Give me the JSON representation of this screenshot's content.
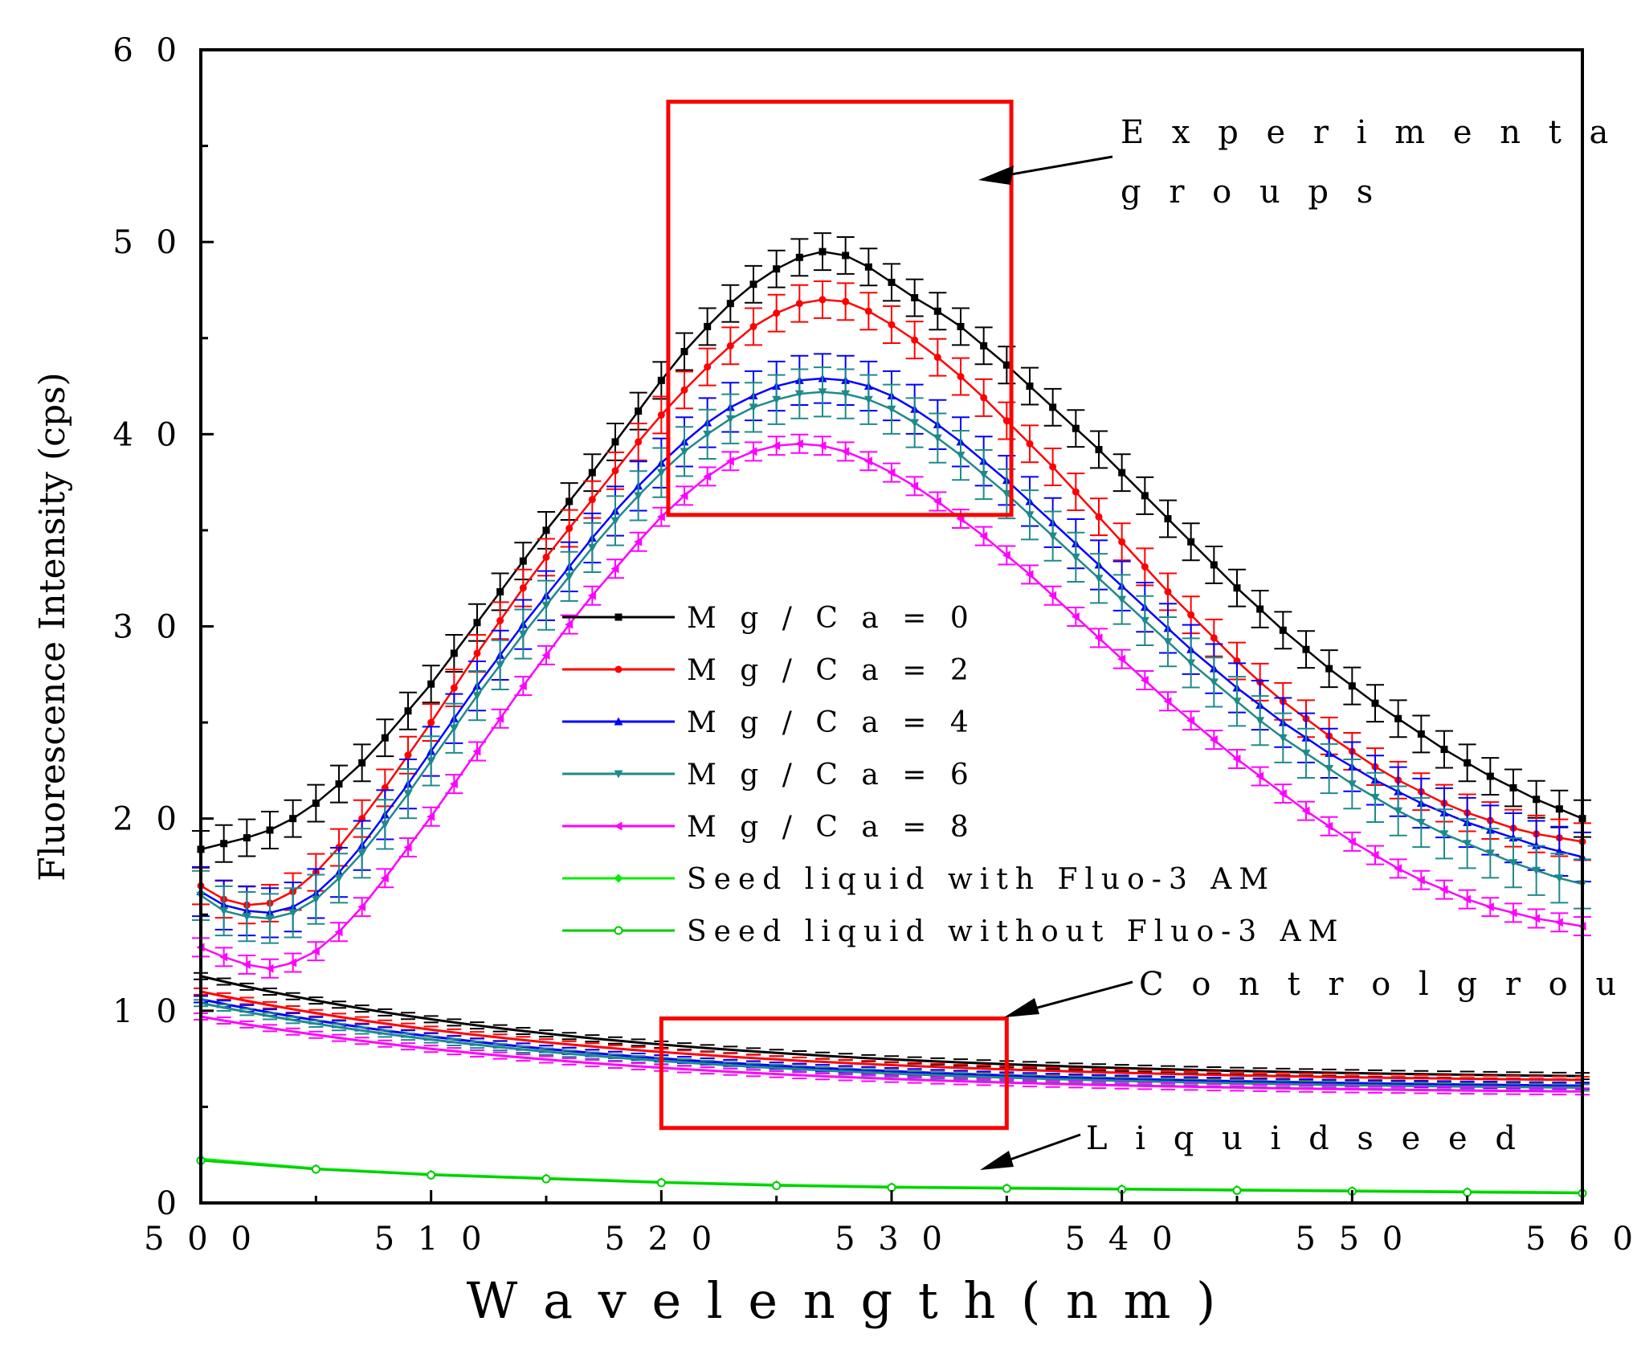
{
  "chart_data": {
    "type": "line",
    "title": "",
    "xlabel": "W a v e l e n g t h  ( n m )",
    "ylabel": "Fluorescence Intensity (cps)",
    "xlim": [
      500,
      560
    ],
    "ylim": [
      0,
      60
    ],
    "xticks": [
      "5 0 0",
      "5 1 0",
      "5 2 0",
      "5 3 0",
      "5 4 0",
      "5 5 0",
      "5 6 0"
    ],
    "yticks": [
      "0",
      "1 0",
      "2 0",
      "3 0",
      "4 0",
      "5 0",
      "6 0"
    ],
    "legend_position": "center",
    "series": [
      {
        "name": "M g / C a = 0",
        "color": "#000000",
        "marker": "square",
        "x": [
          500,
          501,
          502,
          503,
          504,
          505,
          506,
          507,
          508,
          509,
          510,
          511,
          512,
          513,
          514,
          515,
          516,
          517,
          518,
          519,
          520,
          521,
          522,
          523,
          524,
          525,
          526,
          527,
          528,
          529,
          530,
          531,
          532,
          533,
          534,
          535,
          536,
          537,
          538,
          539,
          540,
          541,
          542,
          543,
          544,
          545,
          546,
          547,
          548,
          549,
          550,
          551,
          552,
          553,
          554,
          555,
          556,
          557,
          558,
          559,
          560
        ],
        "values": [
          18.4,
          18.7,
          19.0,
          19.4,
          20.0,
          20.8,
          21.8,
          22.9,
          24.2,
          25.6,
          27.0,
          28.6,
          30.2,
          31.8,
          33.4,
          35.0,
          36.5,
          38.0,
          39.6,
          41.2,
          42.8,
          44.3,
          45.6,
          46.8,
          47.8,
          48.6,
          49.2,
          49.5,
          49.3,
          48.7,
          47.9,
          47.1,
          46.4,
          45.6,
          44.6,
          43.6,
          42.5,
          41.4,
          40.3,
          39.2,
          38.0,
          36.8,
          35.6,
          34.4,
          33.2,
          32.0,
          30.9,
          29.8,
          28.8,
          27.8,
          26.9,
          26.0,
          25.2,
          24.4,
          23.6,
          22.9,
          22.2,
          21.6,
          21.0,
          20.5,
          20.0
        ],
        "errors": 0.6
      },
      {
        "name": "M g / C a = 2",
        "color": "#ff0000",
        "marker": "circle",
        "x": [
          500,
          501,
          502,
          503,
          504,
          505,
          506,
          507,
          508,
          509,
          510,
          511,
          512,
          513,
          514,
          515,
          516,
          517,
          518,
          519,
          520,
          521,
          522,
          523,
          524,
          525,
          526,
          527,
          528,
          529,
          530,
          531,
          532,
          533,
          534,
          535,
          536,
          537,
          538,
          539,
          540,
          541,
          542,
          543,
          544,
          545,
          546,
          547,
          548,
          549,
          550,
          551,
          552,
          553,
          554,
          555,
          556,
          557,
          558,
          559,
          560
        ],
        "values": [
          16.5,
          15.8,
          15.5,
          15.6,
          16.2,
          17.2,
          18.5,
          20.0,
          21.6,
          23.3,
          25.0,
          26.8,
          28.6,
          30.3,
          32.0,
          33.6,
          35.1,
          36.6,
          38.1,
          39.6,
          41.0,
          42.3,
          43.5,
          44.6,
          45.6,
          46.3,
          46.8,
          47.0,
          46.9,
          46.4,
          45.7,
          44.9,
          44.0,
          43.0,
          41.9,
          40.7,
          39.5,
          38.3,
          37.0,
          35.7,
          34.4,
          33.1,
          31.8,
          30.6,
          29.4,
          28.2,
          27.1,
          26.1,
          25.2,
          24.3,
          23.5,
          22.7,
          22.0,
          21.4,
          20.8,
          20.3,
          19.9,
          19.5,
          19.2,
          19.0,
          18.8
        ],
        "errors": 0.6
      },
      {
        "name": "M g / C a = 4",
        "color": "#0000ff",
        "marker": "triangle-up",
        "x": [
          500,
          501,
          502,
          503,
          504,
          505,
          506,
          507,
          508,
          509,
          510,
          511,
          512,
          513,
          514,
          515,
          516,
          517,
          518,
          519,
          520,
          521,
          522,
          523,
          524,
          525,
          526,
          527,
          528,
          529,
          530,
          531,
          532,
          533,
          534,
          535,
          536,
          537,
          538,
          539,
          540,
          541,
          542,
          543,
          544,
          545,
          546,
          547,
          548,
          549,
          550,
          551,
          552,
          553,
          554,
          555,
          556,
          557,
          558,
          559,
          560
        ],
        "values": [
          16.2,
          15.5,
          15.2,
          15.1,
          15.4,
          16.1,
          17.2,
          18.6,
          20.2,
          21.8,
          23.5,
          25.2,
          26.9,
          28.5,
          30.1,
          31.6,
          33.1,
          34.6,
          36.0,
          37.3,
          38.5,
          39.6,
          40.6,
          41.4,
          42.0,
          42.5,
          42.8,
          42.9,
          42.8,
          42.5,
          42.0,
          41.3,
          40.5,
          39.6,
          38.6,
          37.6,
          36.5,
          35.4,
          34.3,
          33.2,
          32.1,
          31.0,
          29.9,
          28.8,
          27.8,
          26.8,
          25.9,
          25.0,
          24.2,
          23.4,
          22.7,
          22.0,
          21.4,
          20.8,
          20.3,
          19.8,
          19.4,
          19.0,
          18.6,
          18.3,
          18.0
        ],
        "errors": 0.8
      },
      {
        "name": "M g / C a = 6",
        "color": "#1f8a8a",
        "marker": "triangle-down",
        "x": [
          500,
          501,
          502,
          503,
          504,
          505,
          506,
          507,
          508,
          509,
          510,
          511,
          512,
          513,
          514,
          515,
          516,
          517,
          518,
          519,
          520,
          521,
          522,
          523,
          524,
          525,
          526,
          527,
          528,
          529,
          530,
          531,
          532,
          533,
          534,
          535,
          536,
          537,
          538,
          539,
          540,
          541,
          542,
          543,
          544,
          545,
          546,
          547,
          548,
          549,
          550,
          551,
          552,
          553,
          554,
          555,
          556,
          557,
          558,
          559,
          560
        ],
        "values": [
          16.0,
          15.2,
          14.9,
          14.8,
          15.1,
          15.8,
          16.9,
          18.2,
          19.7,
          21.3,
          23.0,
          24.7,
          26.4,
          28.0,
          29.6,
          31.1,
          32.6,
          34.1,
          35.5,
          36.8,
          38.0,
          39.1,
          40.0,
          40.8,
          41.4,
          41.8,
          42.1,
          42.2,
          42.1,
          41.8,
          41.3,
          40.6,
          39.8,
          38.9,
          37.9,
          36.9,
          35.8,
          34.7,
          33.6,
          32.5,
          31.4,
          30.3,
          29.2,
          28.1,
          27.1,
          26.1,
          25.1,
          24.2,
          23.4,
          22.6,
          21.8,
          21.1,
          20.4,
          19.8,
          19.2,
          18.7,
          18.2,
          17.7,
          17.3,
          16.9,
          16.6
        ],
        "errors": 0.8
      },
      {
        "name": "M g / C a = 8",
        "color": "#ff00ff",
        "marker": "triangle-left",
        "x": [
          500,
          501,
          502,
          503,
          504,
          505,
          506,
          507,
          508,
          509,
          510,
          511,
          512,
          513,
          514,
          515,
          516,
          517,
          518,
          519,
          520,
          521,
          522,
          523,
          524,
          525,
          526,
          527,
          528,
          529,
          530,
          531,
          532,
          533,
          534,
          535,
          536,
          537,
          538,
          539,
          540,
          541,
          542,
          543,
          544,
          545,
          546,
          547,
          548,
          549,
          550,
          551,
          552,
          553,
          554,
          555,
          556,
          557,
          558,
          559,
          560
        ],
        "values": [
          13.3,
          12.8,
          12.4,
          12.2,
          12.5,
          13.1,
          14.1,
          15.4,
          16.9,
          18.5,
          20.1,
          21.8,
          23.5,
          25.2,
          26.9,
          28.5,
          30.1,
          31.6,
          33.0,
          34.4,
          35.7,
          36.8,
          37.8,
          38.6,
          39.1,
          39.4,
          39.5,
          39.4,
          39.1,
          38.6,
          38.0,
          37.3,
          36.5,
          35.6,
          34.7,
          33.7,
          32.7,
          31.6,
          30.5,
          29.4,
          28.3,
          27.2,
          26.1,
          25.1,
          24.1,
          23.1,
          22.2,
          21.3,
          20.4,
          19.6,
          18.8,
          18.1,
          17.4,
          16.8,
          16.3,
          15.8,
          15.4,
          15.1,
          14.8,
          14.6,
          14.4
        ],
        "errors": 0.3
      },
      {
        "name": "Seed liquid with Fluo-3 AM",
        "color": "#00ee00",
        "marker": "diamond",
        "x": [
          500,
          505,
          510,
          515,
          520,
          525,
          530,
          535,
          540,
          545,
          550,
          555,
          560
        ],
        "values": [
          2.3,
          1.8,
          1.5,
          1.3,
          1.1,
          0.95,
          0.85,
          0.8,
          0.75,
          0.7,
          0.65,
          0.6,
          0.55
        ]
      },
      {
        "name": "Seed liquid without Fluo-3 AM",
        "color": "#00cc00",
        "marker": "circle-open",
        "x": [
          500,
          505,
          510,
          515,
          520,
          525,
          530,
          535,
          540,
          545,
          550,
          555,
          560
        ],
        "values": [
          2.2,
          1.75,
          1.45,
          1.25,
          1.05,
          0.9,
          0.8,
          0.75,
          0.7,
          0.65,
          0.6,
          0.55,
          0.5
        ]
      }
    ],
    "control_groups": [
      {
        "color": "#000000",
        "start": 11.8,
        "end": 6.6
      },
      {
        "color": "#ff0000",
        "start": 11.0,
        "end": 6.4
      },
      {
        "color": "#0000ff",
        "start": 10.6,
        "end": 6.1
      },
      {
        "color": "#1f8a8a",
        "start": 10.4,
        "end": 6.0
      },
      {
        "color": "#ff00ff",
        "start": 9.7,
        "end": 5.8
      }
    ],
    "annotations": [
      {
        "text": "E x p e r i m e n t a l",
        "line2": "g r o u p s"
      },
      {
        "text": "C o n t r o l  g r o u p s"
      },
      {
        "text": "L i q u i d   s e e d"
      }
    ],
    "highlight_boxes": [
      {
        "x0": 520.3,
        "x1": 535.2,
        "y0": 35.8,
        "y1": 57.3,
        "color": "#ff0000"
      },
      {
        "x0": 520.0,
        "x1": 535.0,
        "y0": 3.9,
        "y1": 9.6,
        "color": "#ff0000"
      }
    ]
  }
}
